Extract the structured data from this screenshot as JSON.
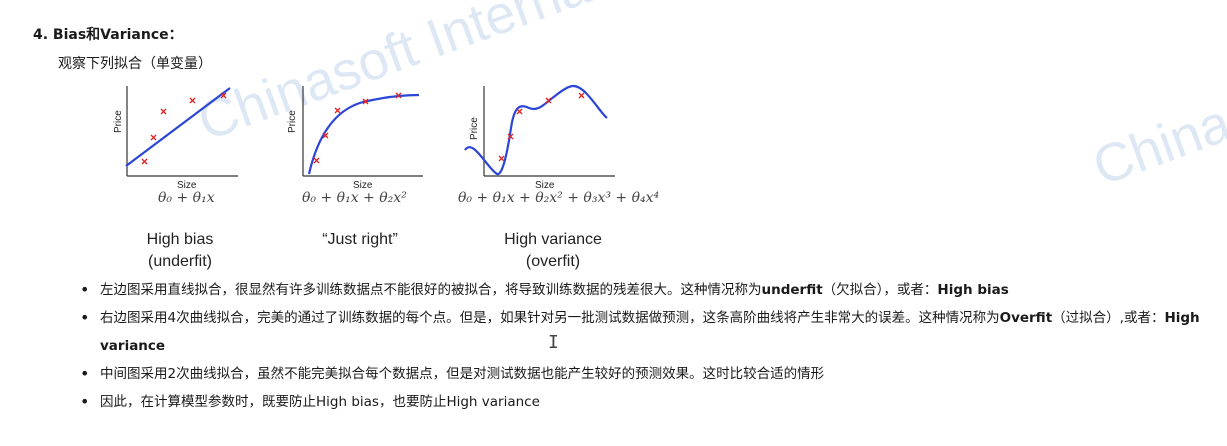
{
  "watermark": {
    "left": "Chinasoft Internati",
    "right": "China"
  },
  "heading": "4.  Bias和Variance：",
  "subheading": "观察下列拟合（单变量）",
  "axes": {
    "x_label": "Size",
    "y_label": "Price"
  },
  "figures": [
    {
      "formula": "θ₀ + θ₁x",
      "caption_line1": "High bias",
      "caption_line2": "(underfit)"
    },
    {
      "formula": "θ₀ + θ₁x + θ₂x²",
      "caption_line1": "“Just right”",
      "caption_line2": ""
    },
    {
      "formula": "θ₀ + θ₁x + θ₂x² + θ₃x³ + θ₄x⁴",
      "caption_line1": "High variance",
      "caption_line2": "(overfit)"
    }
  ],
  "bullets": [
    {
      "pre": "左边图采用直线拟合，很显然有许多训练数据点不能很好的被拟合，将导致训练数据的残差很大。这种情况称为",
      "b1": "underfit",
      "mid": "（欠拟合），或者：",
      "b2": "High bias",
      "post": ""
    },
    {
      "pre": "右边图采用4次曲线拟合，完美的通过了训练数据的每个点。但是，如果针对另一批测试数据做预测，这条高阶曲线将产生非常大的误差。这种情况称为",
      "b1": "Overfit",
      "mid": "（过拟合）,或者：",
      "b2": "High variance",
      "post": ""
    },
    {
      "pre": "中间图采用2次曲线拟合，虽然不能完美拟合每个数据点，但是对测试数据也能产生较好的预测效果。这时比较合适的情形",
      "b1": "",
      "mid": "",
      "b2": "",
      "post": ""
    },
    {
      "pre": "因此，在计算模型参数时，既要防止High bias，也要防止High variance",
      "b1": "",
      "mid": "",
      "b2": "",
      "post": ""
    }
  ],
  "colors": {
    "curve": "#2b45d6",
    "points": "#e02020"
  }
}
